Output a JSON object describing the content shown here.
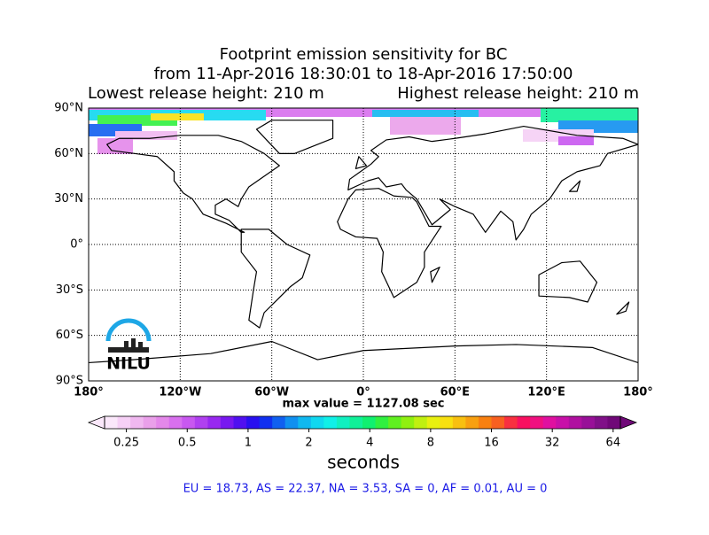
{
  "title_lines": [
    "Footprint emission sensitivity for BC",
    "from 11-Apr-2016 18:30:01 to 18-Apr-2016 17:50:00"
  ],
  "release": {
    "lowest": "Lowest release height: 210 m",
    "highest": "Highest release height: 210 m"
  },
  "map": {
    "xlim": [
      -180,
      180
    ],
    "ylim": [
      -90,
      90
    ],
    "xticks": [
      {
        "value": -180,
        "label": "180°"
      },
      {
        "value": -120,
        "label": "120°W"
      },
      {
        "value": -60,
        "label": "60°W"
      },
      {
        "value": 0,
        "label": "0°"
      },
      {
        "value": 60,
        "label": "60°E"
      },
      {
        "value": 120,
        "label": "120°E"
      },
      {
        "value": 180,
        "label": "180°"
      }
    ],
    "yticks": [
      {
        "value": 90,
        "label": "90°N"
      },
      {
        "value": 60,
        "label": "60°N"
      },
      {
        "value": 30,
        "label": "30°N"
      },
      {
        "value": 0,
        "label": "0°"
      },
      {
        "value": -30,
        "label": "30°S"
      },
      {
        "value": -60,
        "label": "60°S"
      },
      {
        "value": -90,
        "label": "90°S"
      }
    ],
    "grid": true
  },
  "max_value": "max value = 1127.08 sec",
  "colorbar": {
    "log_scale": true,
    "clim": [
      0.195,
      69.5
    ],
    "ticks": [
      0.25,
      0.5,
      1,
      2,
      4,
      8,
      16,
      32,
      64
    ],
    "label": "seconds",
    "colors": [
      "#fbe8fb",
      "#f6d0f6",
      "#f0b8f0",
      "#eaa0ea",
      "#e488ea",
      "#d870ee",
      "#c858f0",
      "#b040f0",
      "#9828f0",
      "#7818f0",
      "#5010f0",
      "#2810f0",
      "#1030f0",
      "#1060f0",
      "#1090f0",
      "#10b8f0",
      "#10d8f0",
      "#10f0e8",
      "#10f0c0",
      "#10f098",
      "#10f070",
      "#30f040",
      "#60f020",
      "#90f010",
      "#c0f010",
      "#e8f010",
      "#f8e010",
      "#f8c010",
      "#f8a010",
      "#f88010",
      "#f86020",
      "#f83040",
      "#f81060",
      "#f01080",
      "#e010a0",
      "#c810a8",
      "#b010a0",
      "#981098",
      "#801088",
      "#700878"
    ]
  },
  "logo": {
    "text": "NILU"
  },
  "regions": "EU = 18.73,  AS = 22.37,  NA = 3.53,  SA = 0,  AF = 0.01,  AU = 0"
}
